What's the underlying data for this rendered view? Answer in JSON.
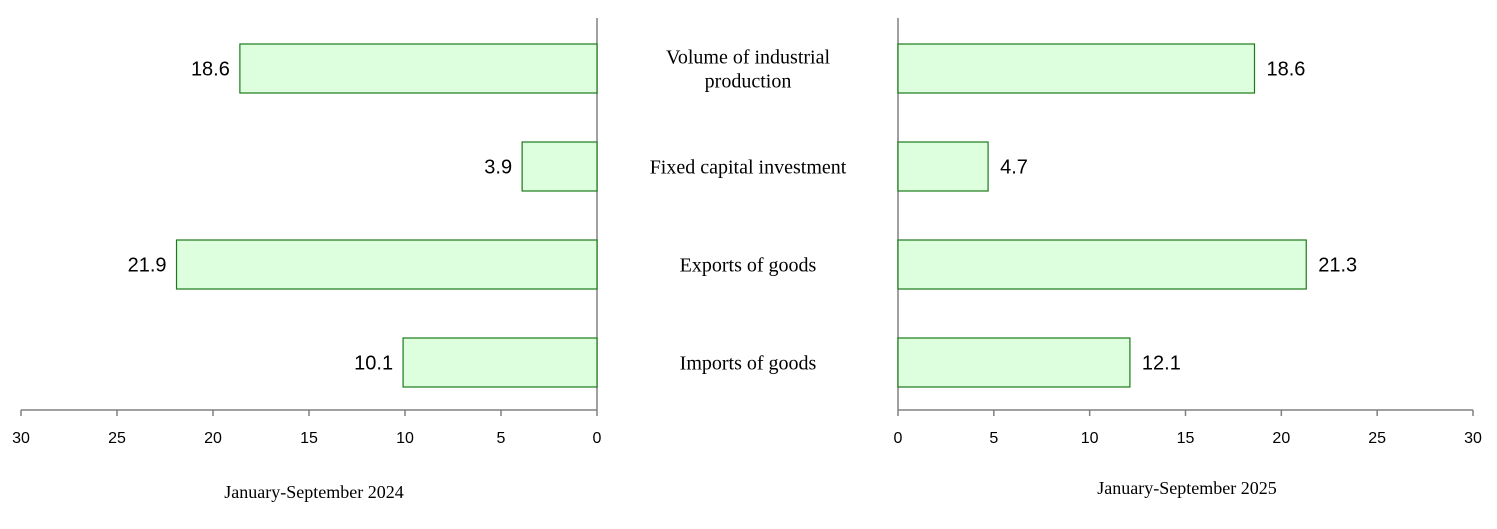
{
  "chart_data": {
    "type": "bar",
    "orientation": "horizontal",
    "layout": "butterfly",
    "categories": [
      [
        "Volume of industrial",
        "production"
      ],
      [
        "Fixed capital investment"
      ],
      [
        "Exports of goods"
      ],
      [
        "Imports of goods"
      ]
    ],
    "series": [
      {
        "name": "January-September 2024",
        "values": [
          18.6,
          3.9,
          21.9,
          10.1
        ],
        "direction": "left"
      },
      {
        "name": "January-September 2025",
        "values": [
          18.6,
          4.7,
          21.3,
          12.1
        ],
        "direction": "right"
      }
    ],
    "xlim": [
      0,
      30
    ],
    "ticks": [
      0,
      5,
      10,
      15,
      20,
      25,
      30
    ],
    "grid": false,
    "colors": {
      "bar_fill": "#ddffdd",
      "bar_stroke": "#1a7a1a",
      "axis": "#808080"
    }
  }
}
